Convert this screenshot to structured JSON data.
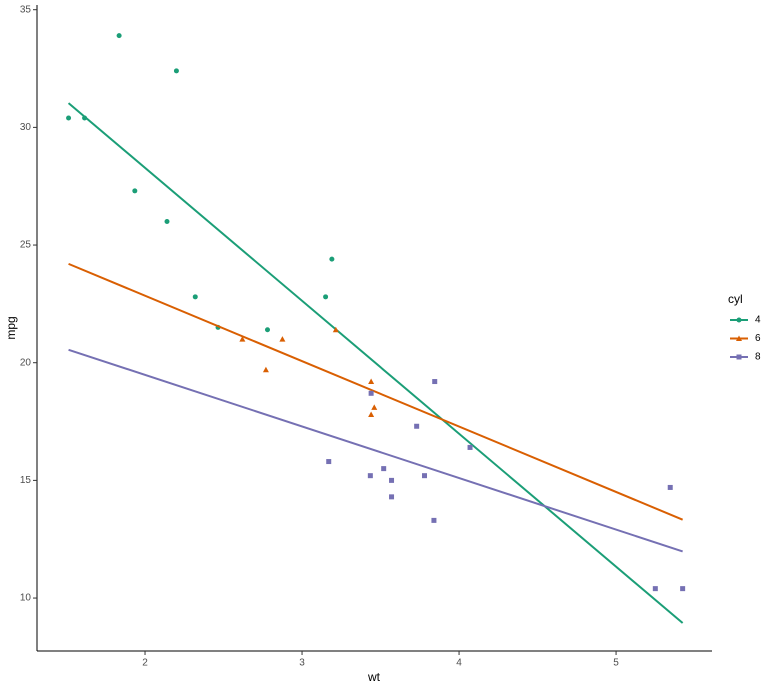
{
  "chart_data": {
    "type": "scatter",
    "x_label": "wt",
    "y_label": "mpg",
    "legend_title": "cyl",
    "xlim": [
      1.312,
      5.611
    ],
    "xticks": [
      2,
      3,
      4,
      5
    ],
    "ylim": [
      7.75,
      35.2
    ],
    "yticks": [
      10,
      15,
      20,
      25,
      30,
      35
    ],
    "grid": false,
    "legend": "right",
    "series": [
      {
        "name": "4",
        "color": "#1b9e77",
        "marker": "circle",
        "x": [
          2.32,
          3.19,
          3.15,
          2.2,
          1.615,
          1.835,
          2.465,
          1.935,
          2.14,
          1.513,
          2.78
        ],
        "y": [
          22.8,
          24.4,
          22.8,
          32.4,
          30.4,
          33.9,
          21.5,
          27.3,
          26,
          30.4,
          21.4
        ],
        "fit": {
          "x": [
            1.513,
            5.424
          ],
          "y": [
            31.03,
            8.94
          ]
        }
      },
      {
        "name": "6",
        "color": "#d95f02",
        "marker": "triangle",
        "x": [
          2.62,
          2.875,
          3.215,
          3.46,
          3.44,
          3.44,
          2.77
        ],
        "y": [
          21,
          21,
          21.4,
          18.1,
          19.2,
          17.8,
          19.7
        ],
        "fit": {
          "x": [
            1.513,
            5.424
          ],
          "y": [
            24.2,
            13.33
          ]
        }
      },
      {
        "name": "8",
        "color": "#7570b3",
        "marker": "square",
        "x": [
          3.44,
          3.57,
          4.07,
          3.73,
          3.78,
          5.25,
          5.424,
          5.345,
          3.52,
          3.435,
          3.84,
          3.845,
          3.17,
          3.57
        ],
        "y": [
          18.7,
          14.3,
          16.4,
          17.3,
          15.2,
          10.4,
          10.4,
          14.7,
          15.5,
          15.2,
          13.3,
          19.2,
          15.8,
          15.0
        ],
        "fit": {
          "x": [
            1.513,
            5.424
          ],
          "y": [
            20.55,
            11.98
          ]
        }
      }
    ]
  }
}
